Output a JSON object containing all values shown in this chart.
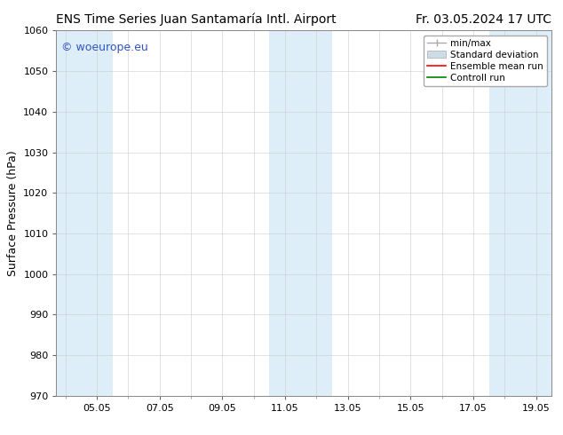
{
  "title_left": "ENS Time Series Juan Santamaría Intl. Airport",
  "title_right": "Fr. 03.05.2024 17 UTC",
  "ylabel": "Surface Pressure (hPa)",
  "ylim": [
    970,
    1060
  ],
  "yticks": [
    970,
    980,
    990,
    1000,
    1010,
    1020,
    1030,
    1040,
    1050,
    1060
  ],
  "xtick_positions": [
    5,
    7,
    9,
    11,
    13,
    15,
    17,
    19
  ],
  "xtick_labels": [
    "05.05",
    "07.05",
    "09.05",
    "11.05",
    "13.05",
    "15.05",
    "17.05",
    "19.05"
  ],
  "xlim": [
    3.708,
    19.5
  ],
  "shaded_bands": [
    {
      "x_start": 3.708,
      "x_end": 5.5,
      "color": "#ddeef8"
    },
    {
      "x_start": 10.5,
      "x_end": 12.5,
      "color": "#ddeef8"
    },
    {
      "x_start": 17.5,
      "x_end": 19.5,
      "color": "#ddeef8"
    }
  ],
  "watermark_text": "© woeurope.eu",
  "watermark_color": "#3355bb",
  "legend_items": [
    {
      "label": "min/max",
      "type": "errorbar",
      "color": "#aaaaaa"
    },
    {
      "label": "Standard deviation",
      "type": "fill",
      "color": "#ccdde8"
    },
    {
      "label": "Ensemble mean run",
      "type": "line",
      "color": "red"
    },
    {
      "label": "Controll run",
      "type": "line",
      "color": "green"
    }
  ],
  "background_color": "#ffffff",
  "plot_bg_color": "#ffffff",
  "grid_color": "#cccccc",
  "title_fontsize": 10,
  "tick_fontsize": 8,
  "ylabel_fontsize": 9,
  "watermark_fontsize": 9,
  "legend_fontsize": 7.5
}
